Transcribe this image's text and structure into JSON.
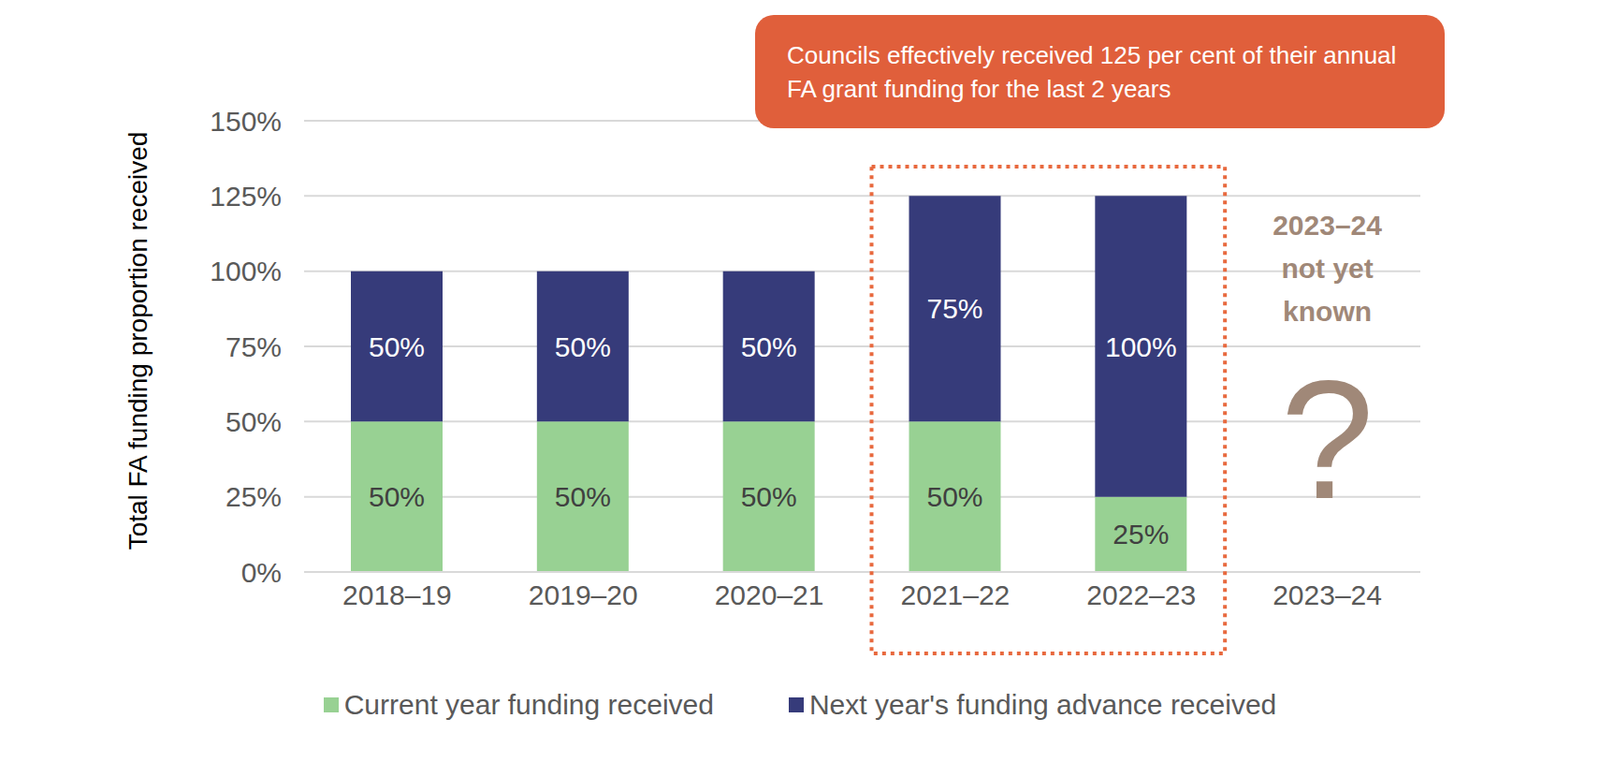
{
  "chart_data": {
    "type": "bar",
    "stacked": true,
    "categories": [
      "2018–19",
      "2019–20",
      "2020–21",
      "2021–22",
      "2022–23",
      "2023–24"
    ],
    "series": [
      {
        "name": "Current year funding received",
        "color": "#98d193",
        "values": [
          50,
          50,
          50,
          50,
          25,
          null
        ],
        "value_labels": [
          "50%",
          "50%",
          "50%",
          "50%",
          "25%",
          null
        ]
      },
      {
        "name": "Next year's funding advance received",
        "color": "#363b7a",
        "values": [
          50,
          50,
          50,
          75,
          100,
          null
        ],
        "value_labels": [
          "50%",
          "50%",
          "50%",
          "75%",
          "100%",
          null
        ]
      }
    ],
    "y_label": "Total FA funding proportion received",
    "ylim": [
      0,
      150
    ],
    "yticks": [
      {
        "value": 0,
        "label": "0%"
      },
      {
        "value": 25,
        "label": "25%"
      },
      {
        "value": 50,
        "label": "50%"
      },
      {
        "value": 75,
        "label": "75%"
      },
      {
        "value": 100,
        "label": "100%"
      },
      {
        "value": 125,
        "label": "125%"
      },
      {
        "value": 150,
        "label": "150%"
      }
    ],
    "grid": true,
    "data_labels": true,
    "legend": "bottom",
    "annotations": [
      "Councils effectively received 125 per cent of their annual FA grant funding for the last 2 years",
      "2023–24 not yet known",
      "?"
    ]
  }
}
